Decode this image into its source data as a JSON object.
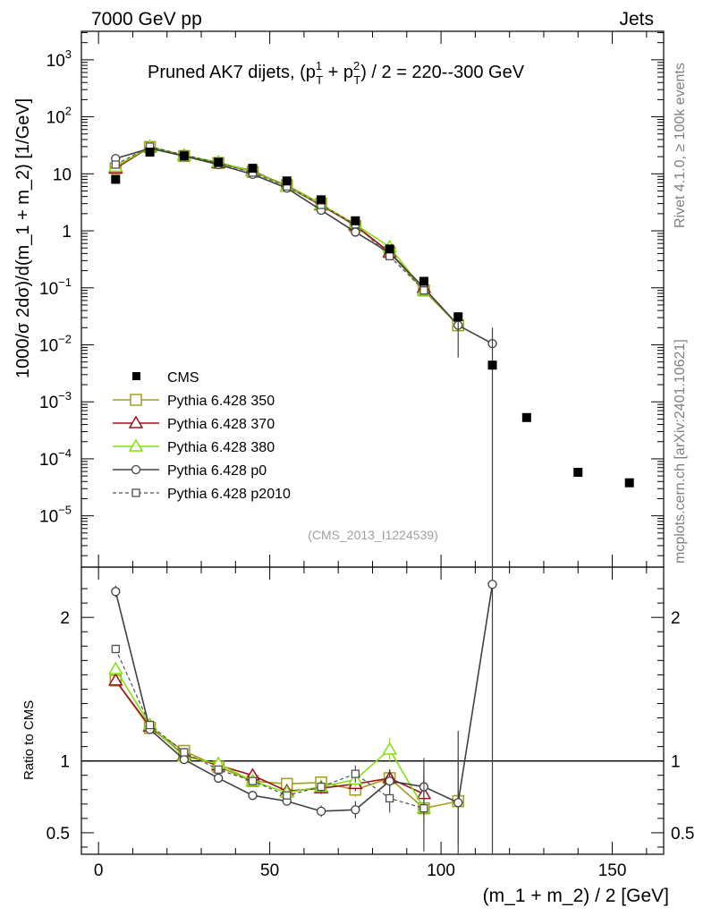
{
  "header": {
    "left": "7000 GeV pp",
    "right": "Jets"
  },
  "side_labels": {
    "rivet": "Rivet 4.1.0, ≥ 100k events",
    "mcplots": "mcplots.cern.ch [arXiv:2401.10621]"
  },
  "colors": {
    "cms": "#000000",
    "p350": "#a0a018",
    "p370": "#a01020",
    "p380": "#80e010",
    "p0": "#404040",
    "p2010": "#505050",
    "analysis": "#a0a0a0"
  },
  "chart_data": {
    "type": "line",
    "title_parts": {
      "prefix": "Pruned AK7 dijets, (p",
      "sup1": "1",
      "sub1": "T",
      "mid": " + p",
      "sup2": "2",
      "sub2": "T",
      "suffix": ") / 2 = 220--300 GeV"
    },
    "analysis_id": "(CMS_2013_I1224539)",
    "xlabel": "(m_1 + m_2) / 2 [GeV]",
    "ylabel_main": "1000/σ   2dσ)/d(m_1 + m_2) [1/GeV]",
    "ylabel_ratio": "Ratio to CMS",
    "xlim": [
      -5,
      165
    ],
    "ylim_main_log10": [
      -5.9,
      3.5
    ],
    "ylim_ratio": [
      0.35,
      2.35
    ],
    "x_ticks": [
      0,
      50,
      100,
      150
    ],
    "x_tick_labels": [
      "0",
      "50",
      "100",
      "150"
    ],
    "y_main_ticks": [
      {
        "exp": 3,
        "base": "10",
        "sup": "3"
      },
      {
        "exp": 2,
        "base": "10",
        "sup": "2"
      },
      {
        "exp": 1,
        "base": "10",
        "sup": ""
      },
      {
        "exp": 0,
        "base": "1",
        "sup": ""
      },
      {
        "exp": -1,
        "base": "10",
        "sup": "−1"
      },
      {
        "exp": -2,
        "base": "10",
        "sup": "−2"
      },
      {
        "exp": -3,
        "base": "10",
        "sup": "−3"
      },
      {
        "exp": -4,
        "base": "10",
        "sup": "−4"
      },
      {
        "exp": -5,
        "base": "10",
        "sup": "−5"
      }
    ],
    "y_ratio_ticks": [
      {
        "v": 0.5,
        "label": "0.5"
      },
      {
        "v": 1,
        "label": "1"
      },
      {
        "v": 2,
        "label": "2"
      }
    ],
    "data": {
      "name": "CMS",
      "x": [
        5,
        15,
        25,
        35,
        45,
        55,
        65,
        75,
        85,
        95,
        105,
        115,
        125,
        140,
        155
      ],
      "y": [
        8.0,
        24.0,
        20.5,
        16.0,
        12.5,
        7.5,
        3.5,
        1.5,
        0.48,
        0.13,
        0.031,
        0.0044,
        0.00053,
        5.8e-05,
        3.8e-05
      ]
    },
    "series": [
      {
        "name": "Pythia 6.428 350",
        "color_key": "p350",
        "marker": "square-open",
        "dashed": false,
        "x": [
          5,
          15,
          25,
          35,
          45,
          55,
          65,
          75,
          85,
          95,
          105
        ],
        "y": [
          12.5,
          29.5,
          20.5,
          15.5,
          10.8,
          6.3,
          3.0,
          1.2,
          0.42,
          0.09,
          0.022
        ],
        "ratio": [
          1.56,
          1.23,
          1.07,
          0.96,
          0.86,
          0.84,
          0.85,
          0.8,
          0.88,
          0.67,
          0.72
        ],
        "ratio_err": [
          0.03,
          0.02,
          0.02,
          0.02,
          0.02,
          0.02,
          0.04,
          0.05,
          0.06,
          0.1,
          0.3
        ]
      },
      {
        "name": "Pythia 6.428 370",
        "color_key": "p370",
        "marker": "triangle-open",
        "dashed": false,
        "x": [
          5,
          15,
          25,
          35,
          45,
          55,
          65,
          75,
          85,
          95
        ],
        "y": [
          12.5,
          29.5,
          21.0,
          15.5,
          11.3,
          6.0,
          2.8,
          1.25,
          0.42,
          0.1
        ],
        "ratio": [
          1.56,
          1.24,
          1.04,
          0.97,
          0.9,
          0.79,
          0.81,
          0.84,
          0.88,
          0.77
        ],
        "ratio_err": [
          0.03,
          0.02,
          0.02,
          0.02,
          0.02,
          0.02,
          0.04,
          0.05,
          0.06,
          0.12
        ]
      },
      {
        "name": "Pythia 6.428 380",
        "color_key": "p380",
        "marker": "triangle-open",
        "dashed": false,
        "x": [
          5,
          15,
          25,
          35,
          45,
          55,
          65,
          75,
          85,
          95
        ],
        "y": [
          13.3,
          30.0,
          21.0,
          16.0,
          11.0,
          6.0,
          2.9,
          1.3,
          0.52,
          0.09
        ],
        "ratio": [
          1.64,
          1.25,
          1.03,
          0.98,
          0.86,
          0.78,
          0.82,
          0.87,
          1.08,
          0.67
        ],
        "ratio_err": [
          0.03,
          0.02,
          0.02,
          0.02,
          0.02,
          0.02,
          0.04,
          0.05,
          0.08,
          0.3
        ]
      },
      {
        "name": "Pythia 6.428 p0",
        "color_key": "p0",
        "marker": "circle-open",
        "dashed": false,
        "x": [
          5,
          15,
          25,
          35,
          45,
          55,
          65,
          75,
          85,
          95,
          105,
          115
        ],
        "y": [
          18.5,
          28.0,
          20.5,
          14.5,
          9.8,
          5.6,
          2.3,
          0.95,
          0.41,
          0.1,
          0.022,
          0.0105
        ],
        "ratio": [
          2.18,
          1.22,
          1.01,
          0.88,
          0.76,
          0.72,
          0.65,
          0.66,
          0.86,
          0.82,
          0.71,
          2.23
        ],
        "ratio_err": [
          0.04,
          0.02,
          0.02,
          0.02,
          0.02,
          0.03,
          0.04,
          0.06,
          0.08,
          0.2,
          0.5,
          2.0
        ]
      },
      {
        "name": "Pythia 6.428 p2010",
        "color_key": "p2010",
        "marker": "square-open-small",
        "dashed": true,
        "x": [
          5,
          15,
          25,
          35,
          45,
          55,
          65,
          75,
          85,
          95
        ],
        "y": [
          14.5,
          30.0,
          21.5,
          15.5,
          10.5,
          6.0,
          2.85,
          1.3,
          0.36,
          0.09
        ],
        "ratio": [
          1.78,
          1.25,
          1.06,
          0.94,
          0.86,
          0.76,
          0.82,
          0.91,
          0.74,
          0.67
        ],
        "ratio_err": [
          0.03,
          0.02,
          0.02,
          0.02,
          0.02,
          0.02,
          0.04,
          0.06,
          0.1,
          0.3
        ]
      }
    ]
  }
}
